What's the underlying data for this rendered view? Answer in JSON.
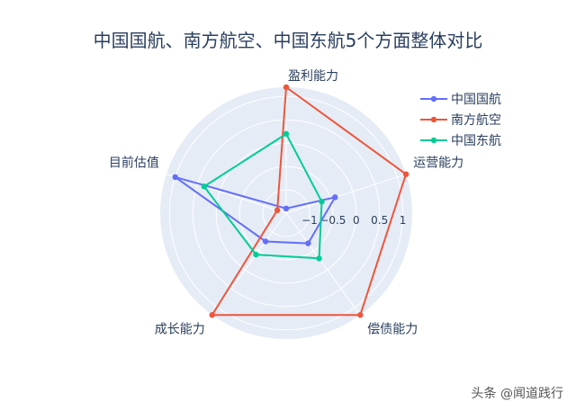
{
  "chart_data": {
    "type": "radar",
    "title": "中国国航、南方航空、中国东航5个方面整体对比",
    "axes": [
      "盈利能力",
      "运营能力",
      "偿债能力",
      "成长能力",
      "目前估值"
    ],
    "radial_range": [
      -1.5,
      1.2
    ],
    "radial_ticks": [
      -1,
      -0.5,
      0,
      0.5,
      1
    ],
    "radial_tick_labels": [
      "−1",
      "−0.5",
      "0",
      "0.5",
      "1"
    ],
    "grid": true,
    "legend_position": "top-right",
    "series": [
      {
        "name": "中国国航",
        "color": "#636efa",
        "values": [
          -1.4,
          -0.4,
          -0.7,
          -0.75,
          1.0
        ]
      },
      {
        "name": "南方航空",
        "color": "#ef553b",
        "values": [
          1.2,
          1.2,
          1.2,
          1.2,
          -1.3
        ]
      },
      {
        "name": "中国东航",
        "color": "#00cc96",
        "values": [
          0.2,
          -0.7,
          -0.3,
          -0.4,
          0.35
        ]
      }
    ]
  },
  "watermark": "头条 @闻道践行"
}
